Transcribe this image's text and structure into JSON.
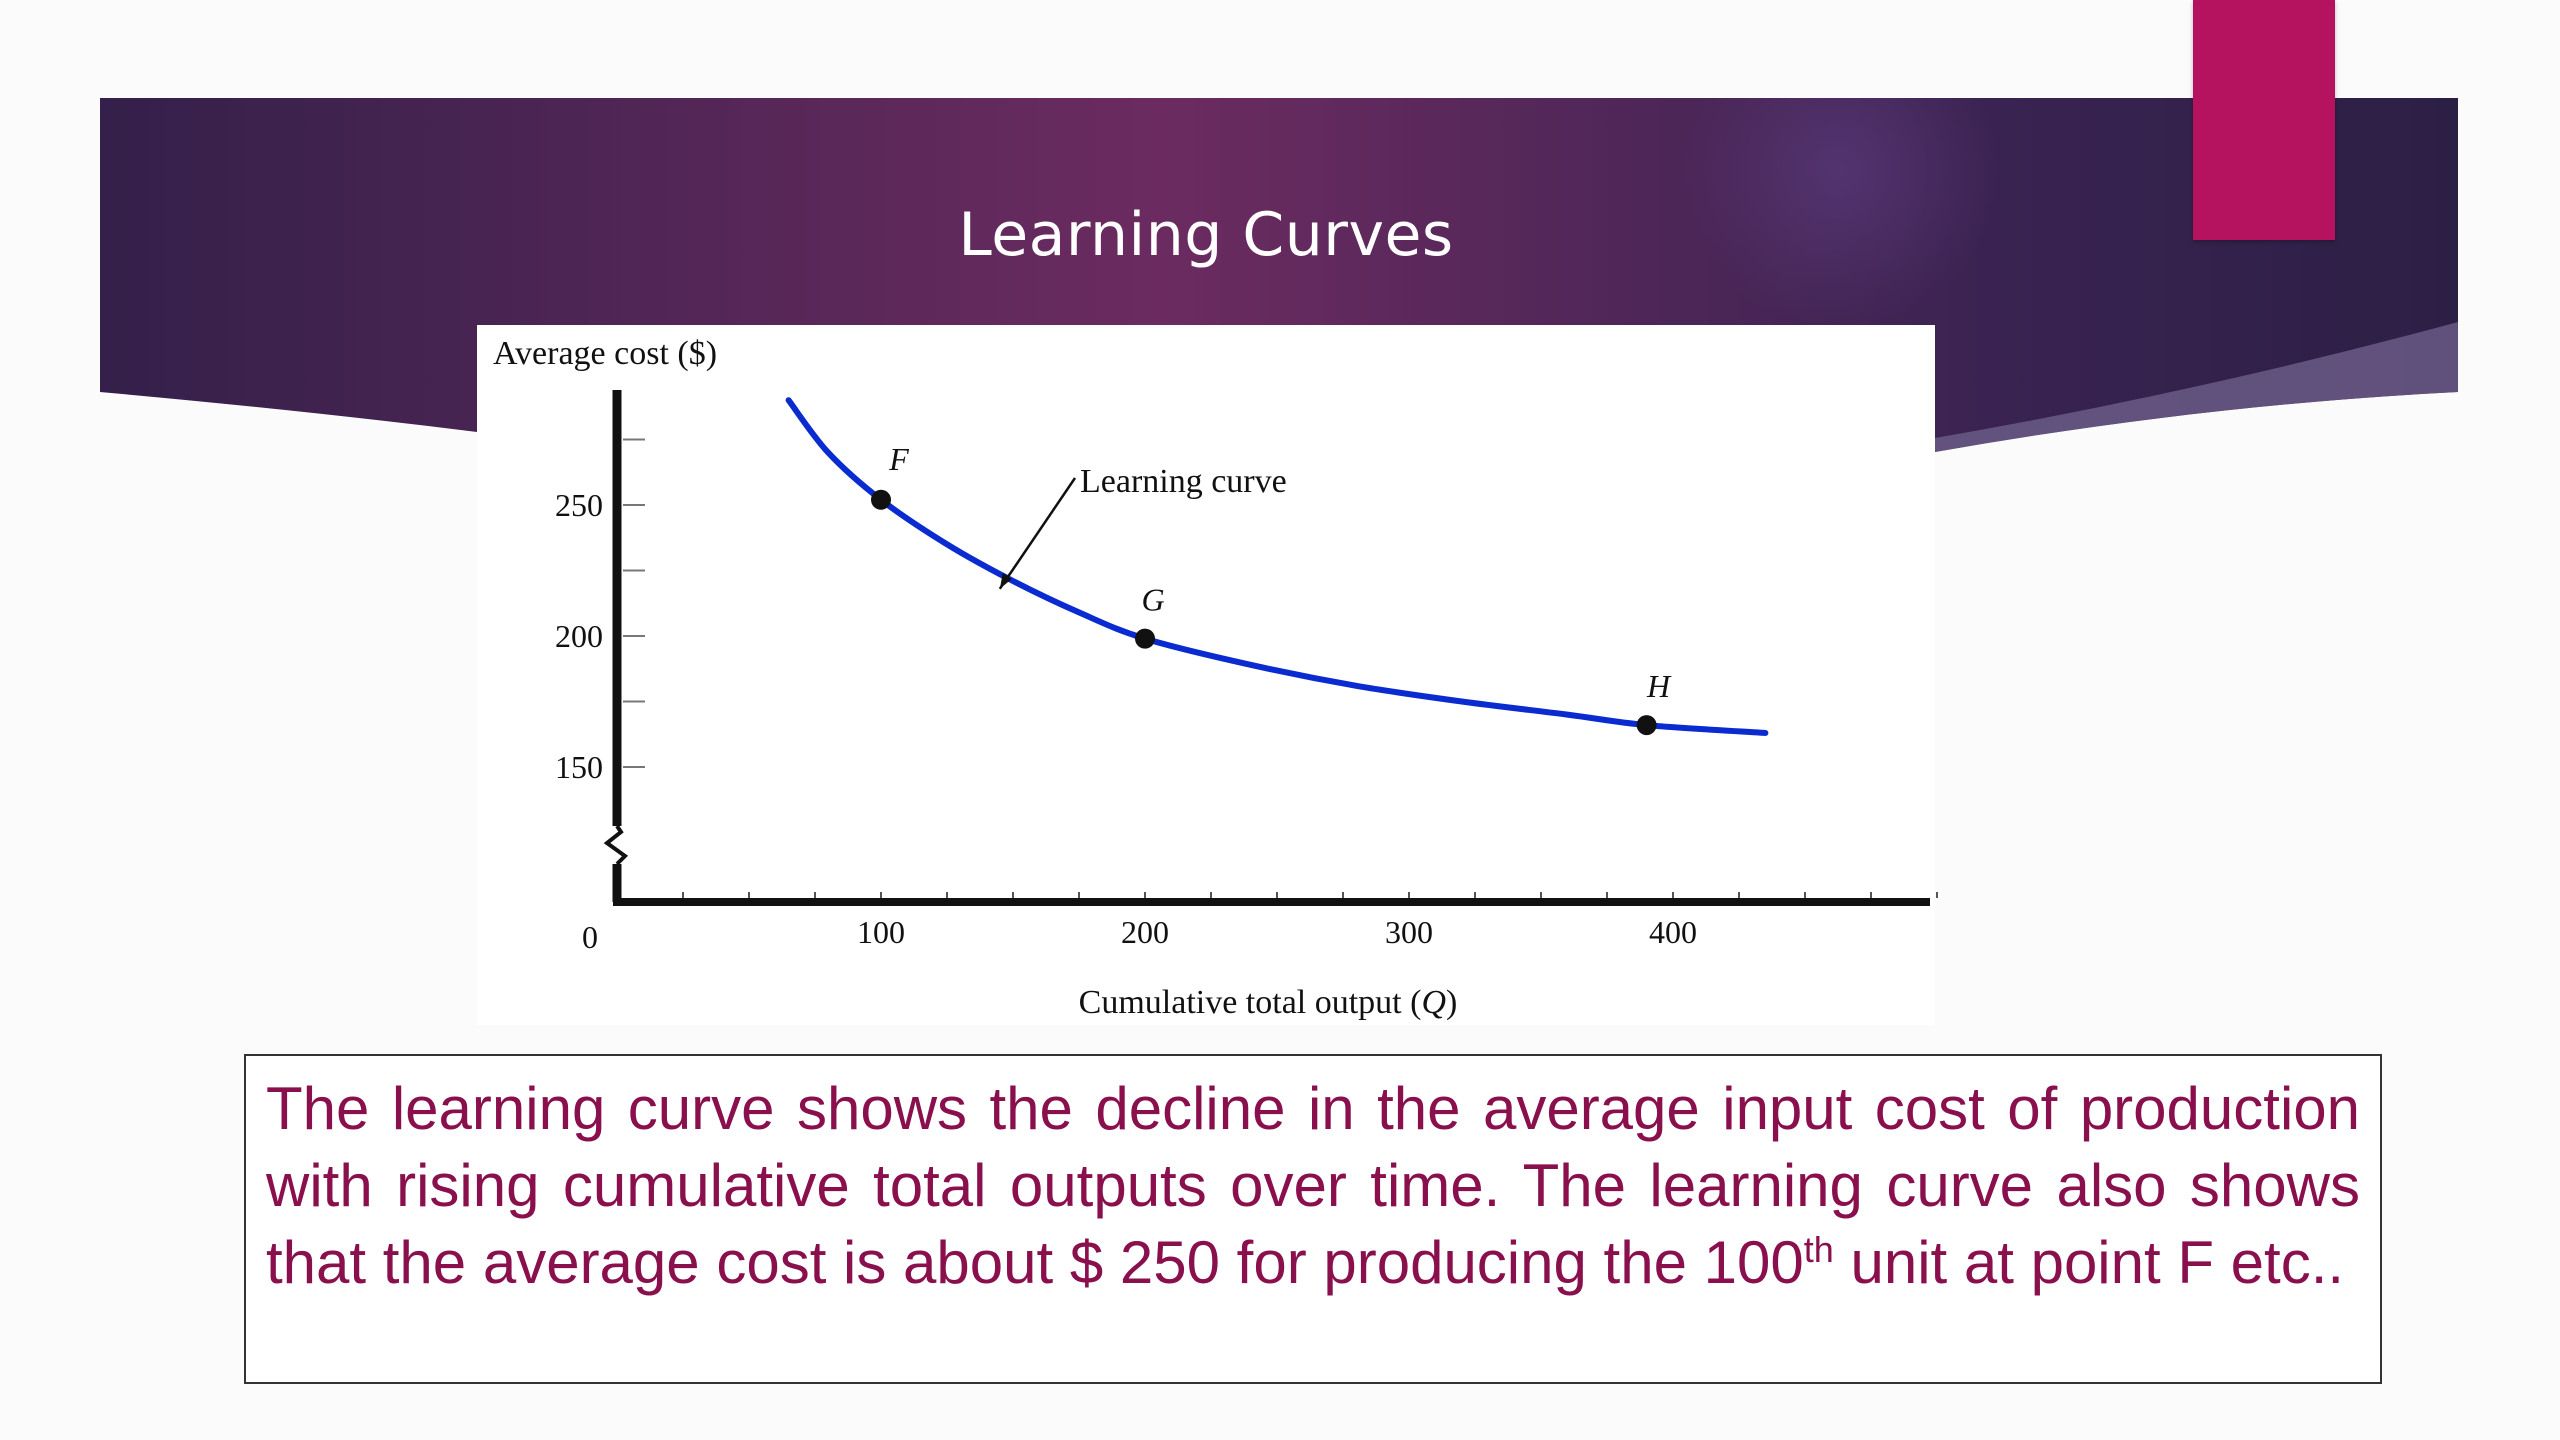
{
  "slide": {
    "title": "Learning Curves",
    "accent_color": "#b5135f",
    "banner_colors": [
      "#2f1e45",
      "#6a2a5e",
      "#4a2550"
    ]
  },
  "description": {
    "line_1": "The learning curve shows the decline in the average input cost of",
    "line_2": "production with rising cumulative total outputs over time. The learning",
    "line_3": "curve also shows that the average cost is about $ 250 for producing the",
    "line_4_number": "100",
    "line_4_superscript": "th",
    "line_4_rest": " unit at point F etc.."
  },
  "chart_data": {
    "type": "line",
    "ylabel": "Average cost ($)",
    "xlabel": "Cumulative total output (",
    "xlabel_var": "Q",
    "xlabel_close": ")",
    "origin_label": "0",
    "xticks": [
      100,
      200,
      300,
      400
    ],
    "yticks": [
      150,
      200,
      250
    ],
    "xlim": [
      0,
      500
    ],
    "ylim": [
      150,
      250
    ],
    "y_axis_break": true,
    "series": [
      {
        "name": "Learning curve",
        "color": "#0a2bd0",
        "points": [
          [
            65,
            290
          ],
          [
            80,
            270
          ],
          [
            100,
            252
          ],
          [
            125,
            235
          ],
          [
            150,
            221
          ],
          [
            175,
            209
          ],
          [
            200,
            199
          ],
          [
            240,
            189
          ],
          [
            280,
            181
          ],
          [
            320,
            175
          ],
          [
            360,
            170
          ],
          [
            390,
            166
          ],
          [
            435,
            163
          ]
        ]
      }
    ],
    "labeled_points": [
      {
        "label": "F",
        "x": 100,
        "y": 252
      },
      {
        "label": "G",
        "x": 200,
        "y": 199
      },
      {
        "label": "H",
        "x": 390,
        "y": 166
      }
    ],
    "annotation": {
      "text": "Learning curve",
      "x": 145,
      "y": 218
    },
    "grid": false,
    "legend": "none"
  }
}
